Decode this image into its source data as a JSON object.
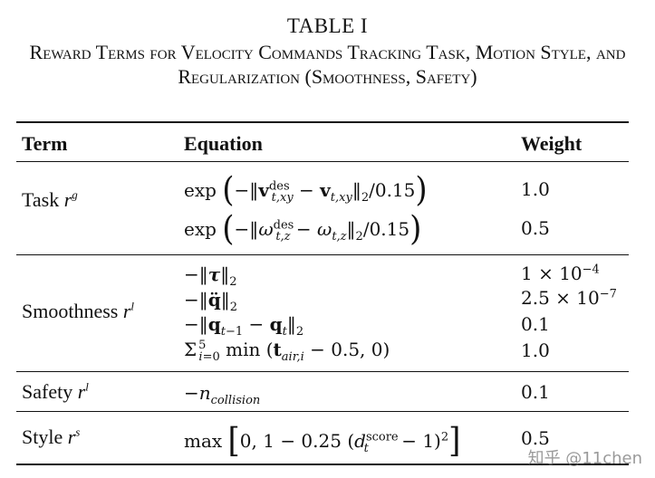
{
  "table": {
    "label": "TABLE I",
    "caption": "Reward Terms for Velocity Commands Tracking Task, Motion Style, and Regularization (Smoothness, Safety)",
    "headers": {
      "term": "Term",
      "equation": "Equation",
      "weight": "Weight"
    },
    "groups": [
      {
        "term_name": "Task",
        "term_sym": "r",
        "term_sup": "g",
        "rows": [
          {
            "equation": "exp(−‖v_{t,xy}^{des} − v_{t,xy}‖₂/0.15)",
            "weight": "1.0"
          },
          {
            "equation": "exp(−‖ω_{t,z}^{des} − ω_{t,z}‖₂/0.15)",
            "weight": "0.5"
          }
        ]
      },
      {
        "term_name": "Smoothness",
        "term_sym": "r",
        "term_sup": "l",
        "rows": [
          {
            "equation": "−‖τ‖₂",
            "weight": "1 × 10^{−4}"
          },
          {
            "equation": "−‖q̈‖₂",
            "weight": "2.5 × 10^{−7}"
          },
          {
            "equation": "−‖q_{t−1} − q_t‖₂",
            "weight": "0.1"
          },
          {
            "equation": "Σ_{i=0}^{5} min(t_{air,i} − 0.5, 0)",
            "weight": "1.0"
          }
        ]
      },
      {
        "term_name": "Safety",
        "term_sym": "r",
        "term_sup": "l",
        "rows": [
          {
            "equation": "−n_{collision}",
            "weight": "0.1"
          }
        ]
      },
      {
        "term_name": "Style",
        "term_sym": "r",
        "term_sup": "s",
        "rows": [
          {
            "equation": "max[0, 1 − 0.25 (d_t^{score} − 1)^2]",
            "weight": "0.5"
          }
        ]
      }
    ]
  },
  "watermark": "知乎 @11chen"
}
